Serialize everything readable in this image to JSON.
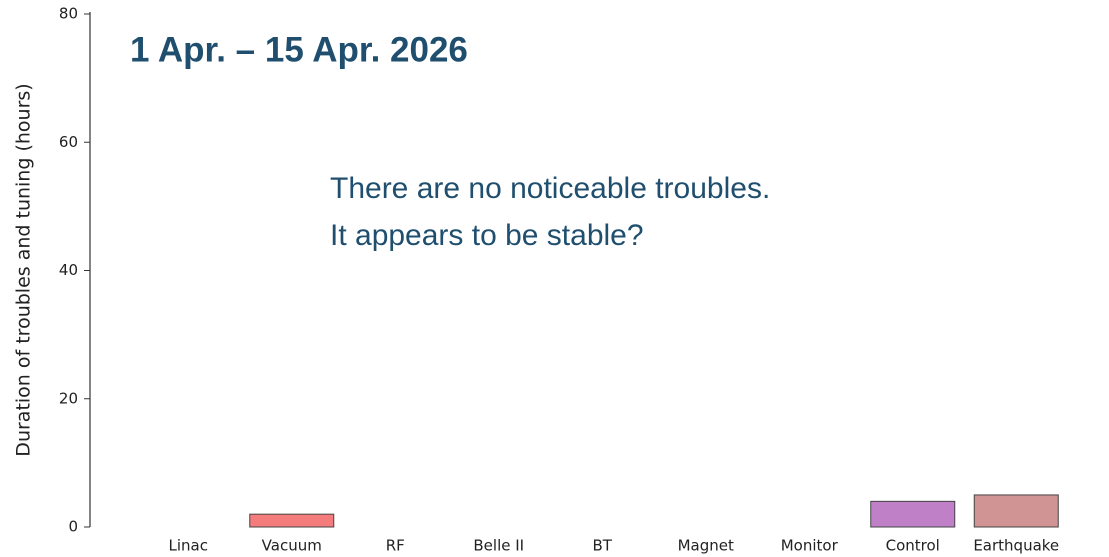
{
  "chart_data": {
    "type": "bar",
    "title": "1 Apr. – 15 Apr. 2026",
    "annotations": [
      "There are no noticeable troubles.",
      "It appears to be stable?"
    ],
    "y_label": "Duration of troubles and tuning (hours)",
    "categories": [
      "Linac",
      "Vacuum",
      "RF",
      "Belle II",
      "BT",
      "Magnet",
      "Monitor",
      "Control",
      "Earthquake"
    ],
    "values": [
      0,
      2,
      0,
      0,
      0,
      0,
      0,
      4,
      5
    ],
    "colors": [
      "#8fa8d0",
      "#f47c7c",
      "#e0a060",
      "#a0c080",
      "#80c0c0",
      "#c0c060",
      "#a0a0a0",
      "#c080c8",
      "#d09494"
    ],
    "ylim": [
      0,
      80
    ],
    "yticks": [
      0,
      20,
      40,
      60,
      80
    ]
  }
}
